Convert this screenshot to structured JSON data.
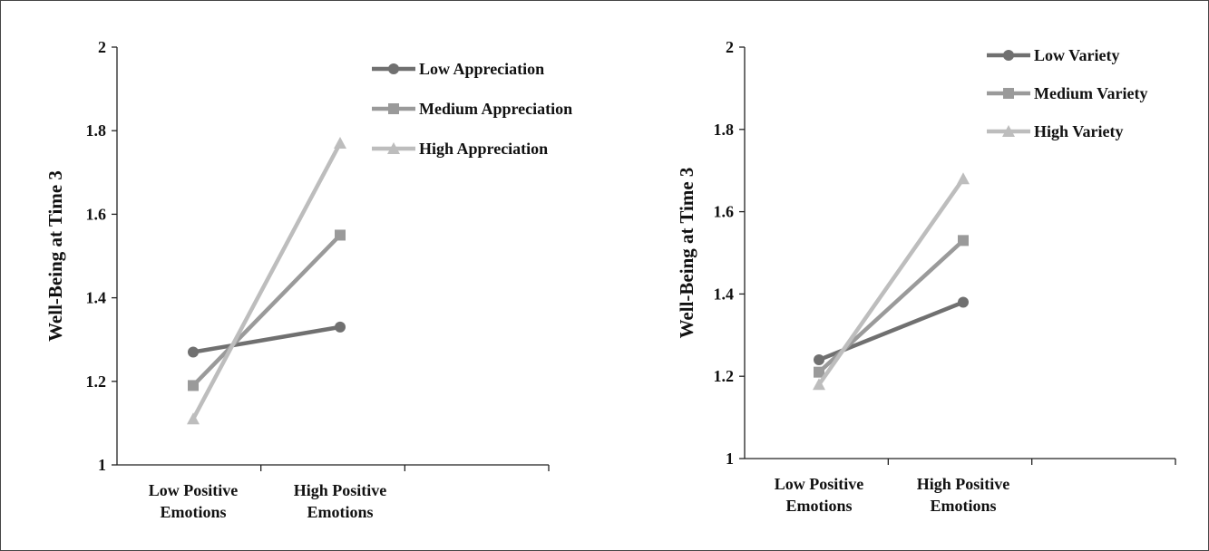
{
  "chart_data": [
    {
      "type": "line",
      "ylabel": "Well-Being at Time 3",
      "categories": [
        [
          "Low Positive",
          "Emotions"
        ],
        [
          "High Positive",
          "Emotions"
        ]
      ],
      "ylim": [
        1,
        2
      ],
      "yticks": [
        "1",
        "1.2",
        "1.4",
        "1.6",
        "1.8",
        "2"
      ],
      "legend_position": "top-right",
      "series": [
        {
          "name": "Low Appreciation",
          "values": [
            1.27,
            1.33
          ],
          "color": "#707070",
          "marker": "circle"
        },
        {
          "name": "Medium Appreciation",
          "values": [
            1.19,
            1.55
          ],
          "color": "#9a9a9a",
          "marker": "square"
        },
        {
          "name": "High Appreciation",
          "values": [
            1.11,
            1.77
          ],
          "color": "#bdbdbd",
          "marker": "triangle"
        }
      ]
    },
    {
      "type": "line",
      "ylabel": "Well-Being at Time 3",
      "categories": [
        [
          "Low Positive",
          "Emotions"
        ],
        [
          "High Positive",
          "Emotions"
        ]
      ],
      "ylim": [
        1,
        2
      ],
      "yticks": [
        "1",
        "1.2",
        "1.4",
        "1.6",
        "1.8",
        "2"
      ],
      "legend_position": "top-right",
      "series": [
        {
          "name": "Low Variety",
          "values": [
            1.24,
            1.38
          ],
          "color": "#707070",
          "marker": "circle"
        },
        {
          "name": "Medium Variety",
          "values": [
            1.21,
            1.53
          ],
          "color": "#9a9a9a",
          "marker": "square"
        },
        {
          "name": "High Variety",
          "values": [
            1.18,
            1.68
          ],
          "color": "#bdbdbd",
          "marker": "triangle"
        }
      ]
    }
  ]
}
